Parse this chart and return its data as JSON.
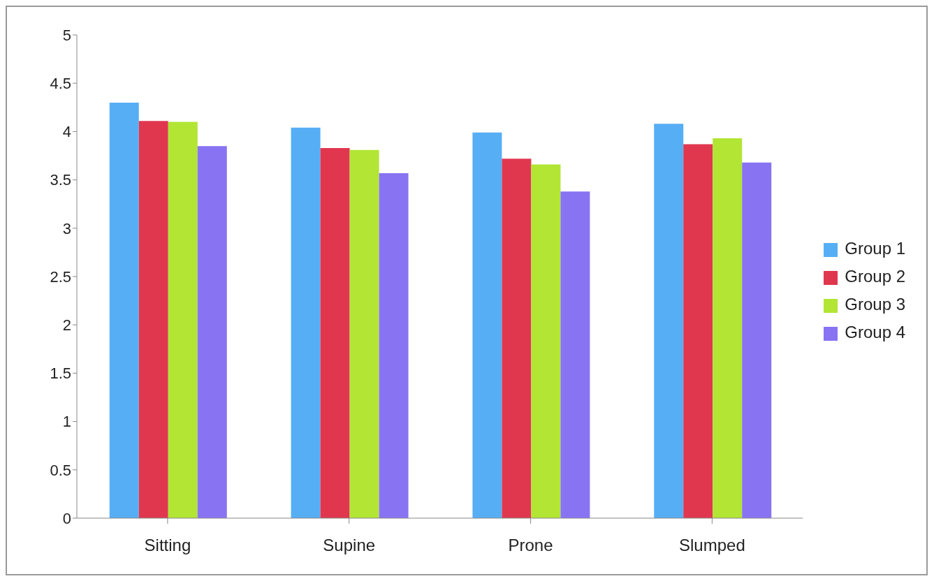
{
  "chart_data": {
    "type": "bar",
    "categories": [
      "Sitting",
      "Supine",
      "Prone",
      "Slumped"
    ],
    "series": [
      {
        "name": "Group 1",
        "color": "#56aef5",
        "values": [
          4.3,
          4.04,
          3.99,
          4.08
        ]
      },
      {
        "name": "Group 2",
        "color": "#e0374f",
        "values": [
          4.11,
          3.83,
          3.72,
          3.87
        ]
      },
      {
        "name": "Group 3",
        "color": "#b2e534",
        "values": [
          4.1,
          3.81,
          3.66,
          3.93
        ]
      },
      {
        "name": "Group 4",
        "color": "#8873f3",
        "values": [
          3.85,
          3.57,
          3.38,
          3.68
        ]
      }
    ],
    "ylim": [
      0,
      5
    ],
    "yticks": [
      0,
      0.5,
      1,
      1.5,
      2,
      2.5,
      3,
      3.5,
      4,
      4.5,
      5
    ],
    "grid": false,
    "legend": "right"
  }
}
